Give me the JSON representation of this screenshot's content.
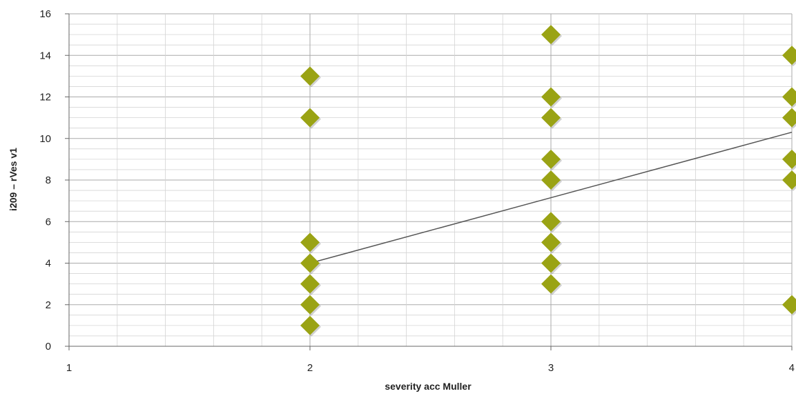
{
  "chart_data": {
    "type": "scatter",
    "xlabel": "severity acc Muller",
    "ylabel": "i209 – rVes v1",
    "xlim": [
      1,
      4
    ],
    "ylim": [
      0,
      16
    ],
    "x_ticks": [
      "1",
      "2",
      "3",
      "4"
    ],
    "y_ticks": [
      "0",
      "2",
      "4",
      "6",
      "8",
      "10",
      "12",
      "14",
      "16"
    ],
    "grid": true,
    "legend": "none",
    "series": [
      {
        "points": [
          {
            "x": 2,
            "y": 13
          },
          {
            "x": 2,
            "y": 11
          },
          {
            "x": 2,
            "y": 5
          },
          {
            "x": 2,
            "y": 4
          },
          {
            "x": 2,
            "y": 3
          },
          {
            "x": 2,
            "y": 2
          },
          {
            "x": 2,
            "y": 1
          },
          {
            "x": 3,
            "y": 15
          },
          {
            "x": 3,
            "y": 12
          },
          {
            "x": 3,
            "y": 11
          },
          {
            "x": 3,
            "y": 9
          },
          {
            "x": 3,
            "y": 8
          },
          {
            "x": 3,
            "y": 6
          },
          {
            "x": 3,
            "y": 5
          },
          {
            "x": 3,
            "y": 4
          },
          {
            "x": 3,
            "y": 3
          },
          {
            "x": 4,
            "y": 14
          },
          {
            "x": 4,
            "y": 12
          },
          {
            "x": 4,
            "y": 11
          },
          {
            "x": 4,
            "y": 9
          },
          {
            "x": 4,
            "y": 8
          },
          {
            "x": 4,
            "y": 2
          }
        ]
      }
    ],
    "trendline": {
      "x": [
        2,
        4
      ],
      "y": [
        4.0,
        10.3
      ]
    },
    "colors": {
      "marker": "#9aa314",
      "trendline": "#555555",
      "grid_major": "#aaaaaa",
      "grid_minor": "#d4d4d4"
    },
    "marker_shape": "diamond"
  }
}
